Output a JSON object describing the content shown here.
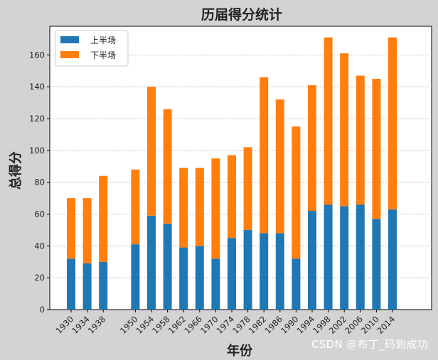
{
  "chart_data": {
    "type": "bar",
    "stacked": true,
    "title": "历届得分统计",
    "xlabel": "年份",
    "ylabel": "总得分",
    "ylim": [
      0,
      178
    ],
    "yticks": [
      0,
      20,
      40,
      60,
      80,
      100,
      120,
      140,
      160
    ],
    "grid": "horizontal-dotted",
    "legend_position": "top-left",
    "categories": [
      "1930",
      "1934",
      "1938",
      "1950",
      "1954",
      "1958",
      "1962",
      "1966",
      "1970",
      "1974",
      "1978",
      "1982",
      "1986",
      "1990",
      "1994",
      "1998",
      "2002",
      "2006",
      "2010",
      "2014"
    ],
    "series": [
      {
        "name": "上半场",
        "color": "#1f77b4",
        "values": [
          32,
          29,
          30,
          41,
          59,
          54,
          39,
          40,
          32,
          45,
          50,
          48,
          48,
          32,
          62,
          66,
          65,
          66,
          57,
          63
        ]
      },
      {
        "name": "下半场",
        "color": "#ff7f0e",
        "values": [
          38,
          41,
          54,
          47,
          81,
          72,
          50,
          49,
          63,
          52,
          52,
          98,
          84,
          83,
          79,
          105,
          96,
          81,
          88,
          108
        ]
      }
    ]
  },
  "watermark": "CSDN @布丁_码到成功"
}
